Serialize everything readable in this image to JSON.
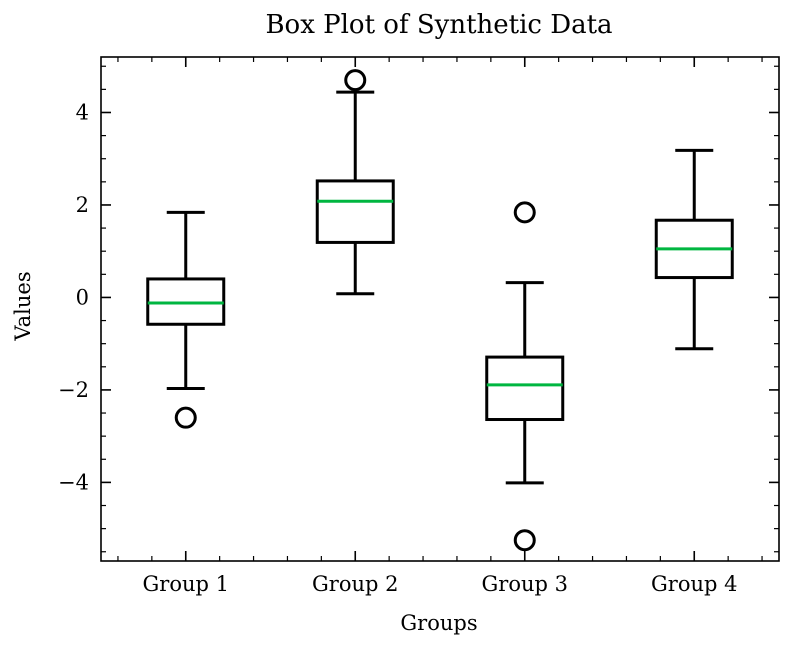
{
  "chart_data": {
    "type": "box",
    "title": "Box Plot of Synthetic Data",
    "xlabel": "Groups",
    "ylabel": "Values",
    "ylim": [
      -5.7,
      5.2
    ],
    "yticks": [
      -4,
      -2,
      0,
      2,
      4
    ],
    "yticklabels": [
      "−4",
      "−2",
      "0",
      "2",
      "4"
    ],
    "grid": false,
    "colors": {
      "box": "#000000",
      "median": "#00b640"
    },
    "categories": [
      "Group 1",
      "Group 2",
      "Group 3",
      "Group 4"
    ],
    "series": [
      {
        "whisker_low": -1.97,
        "q1": -0.58,
        "median": -0.12,
        "q3": 0.4,
        "whisker_high": 1.84,
        "outliers": [
          -2.6
        ]
      },
      {
        "whisker_low": 0.08,
        "q1": 1.19,
        "median": 2.08,
        "q3": 2.52,
        "whisker_high": 4.44,
        "outliers": [
          4.7
        ]
      },
      {
        "whisker_low": -4.01,
        "q1": -2.64,
        "median": -1.89,
        "q3": -1.29,
        "whisker_high": 0.32,
        "outliers": [
          1.84,
          -5.25
        ]
      },
      {
        "whisker_low": -1.11,
        "q1": 0.43,
        "median": 1.05,
        "q3": 1.67,
        "whisker_high": 3.18,
        "outliers": []
      }
    ]
  }
}
